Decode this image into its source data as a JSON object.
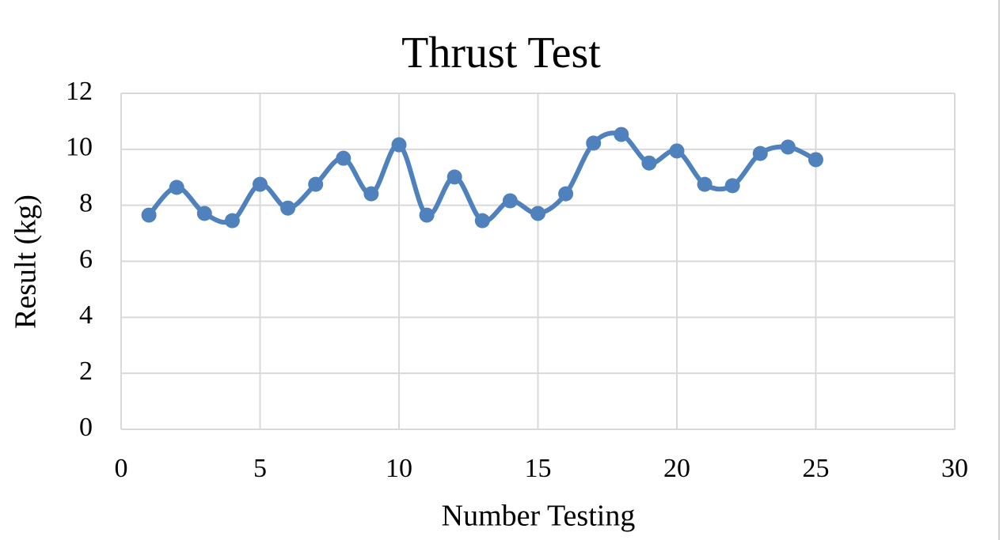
{
  "chart_data": {
    "type": "line",
    "title": "Thrust Test",
    "x_label": "Number Testing",
    "y_label": "Result (kg)",
    "x": [
      1,
      2,
      3,
      4,
      5,
      6,
      7,
      8,
      9,
      10,
      11,
      12,
      13,
      14,
      15,
      16,
      17,
      18,
      19,
      20,
      21,
      22,
      23,
      24,
      25
    ],
    "series": [
      {
        "color": "#4f81bd",
        "values": [
          7.65,
          8.64,
          7.71,
          7.45,
          8.75,
          7.9,
          8.75,
          9.68,
          8.41,
          10.16,
          7.65,
          9.01,
          7.45,
          8.16,
          7.71,
          8.41,
          10.22,
          10.53,
          9.51,
          9.94,
          8.75,
          8.7,
          9.85,
          10.08,
          9.63
        ]
      }
    ],
    "xlim": [
      0,
      30
    ],
    "xticks": [
      0,
      5,
      10,
      15,
      20,
      25,
      30
    ],
    "ylim": [
      0,
      12
    ],
    "yticks": [
      0,
      2,
      4,
      6,
      8,
      10,
      12
    ],
    "grid": true,
    "smooth": true
  }
}
